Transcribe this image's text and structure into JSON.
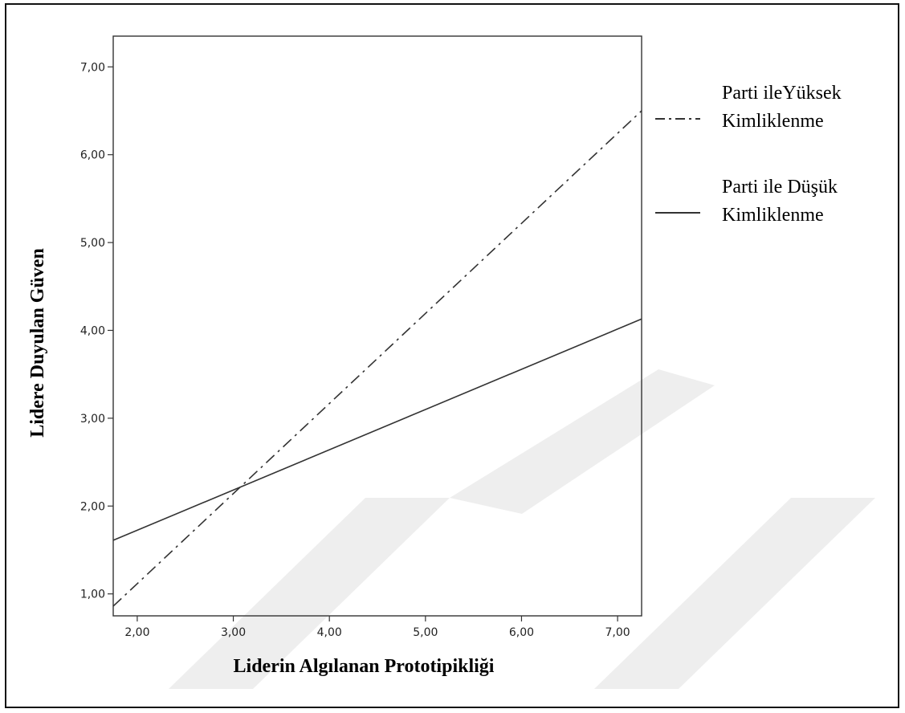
{
  "chart_data": {
    "type": "line",
    "title": "",
    "xlabel": "Liderin Algılanan Prototipikliği",
    "ylabel": "Lidere Duyulan Güven",
    "xlim": [
      1.75,
      7.25
    ],
    "ylim": [
      0.75,
      7.35
    ],
    "x_ticks": [
      "2,00",
      "3,00",
      "4,00",
      "5,00",
      "6,00",
      "7,00"
    ],
    "x_tick_values": [
      2,
      3,
      4,
      5,
      6,
      7
    ],
    "y_ticks": [
      "1,00",
      "2,00",
      "3,00",
      "4,00",
      "5,00",
      "6,00",
      "7,00"
    ],
    "y_tick_values": [
      1,
      2,
      3,
      4,
      5,
      6,
      7
    ],
    "grid": false,
    "legend_position": "right",
    "series": [
      {
        "name_lines": [
          "Parti ileYüksek",
          "Kimliklenme"
        ],
        "style": "dash-dot",
        "x": [
          1.75,
          7.25
        ],
        "y": [
          0.86,
          6.5
        ]
      },
      {
        "name_lines": [
          "Parti ile Düşük",
          "Kimliklenme"
        ],
        "style": "solid",
        "x": [
          1.75,
          7.25
        ],
        "y": [
          1.61,
          4.13
        ]
      }
    ]
  }
}
